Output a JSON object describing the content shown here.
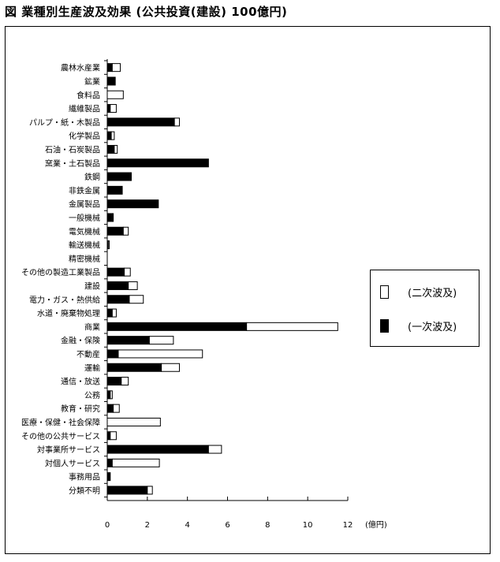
{
  "title": "図 業種別生産波及効果 (公共投資(建設) 100億円)",
  "chart_data": {
    "type": "bar",
    "orientation": "horizontal",
    "stacked": true,
    "categories": [
      "農林水産業",
      "鉱業",
      "食料品",
      "繊維製品",
      "パルプ・紙・木製品",
      "化学製品",
      "石油・石炭製品",
      "窯業・土石製品",
      "鉄鋼",
      "非鉄金属",
      "金属製品",
      "一般機械",
      "電気機械",
      "輸送機械",
      "精密機械",
      "その他の製造工業製品",
      "建設",
      "電力・ガス・熱供給",
      "水道・廃棄物処理",
      "商業",
      "金融・保険",
      "不動産",
      "運輸",
      "通信・放送",
      "公務",
      "教育・研究",
      "医療・保健・社会保障",
      "その他の公共サービス",
      "対事業所サービス",
      "対個人サービス",
      "事務用品",
      "分類不明"
    ],
    "series": [
      {
        "name": "一次波及",
        "color": "#000000",
        "values": [
          0.25,
          0.4,
          0,
          0.15,
          3.35,
          0.2,
          0.35,
          5.05,
          1.2,
          0.75,
          2.55,
          0.3,
          0.8,
          0.05,
          0,
          0.85,
          1.05,
          1.1,
          0.25,
          6.95,
          2.1,
          0.55,
          2.7,
          0.7,
          0.15,
          0.3,
          0,
          0.15,
          5.05,
          0.25,
          0.15,
          2.0
        ]
      },
      {
        "name": "二次波及",
        "color": "#ffffff",
        "values": [
          0.4,
          0,
          0.8,
          0.3,
          0.25,
          0.15,
          0.15,
          0,
          0,
          0,
          0,
          0,
          0.25,
          0.05,
          0,
          0.3,
          0.45,
          0.7,
          0.2,
          4.55,
          1.2,
          4.2,
          0.9,
          0.35,
          0.1,
          0.3,
          2.65,
          0.3,
          0.65,
          2.35,
          0,
          0.25
        ]
      }
    ],
    "xlim": [
      0,
      12
    ],
    "xticks": [
      0,
      2,
      4,
      6,
      8,
      10,
      12
    ],
    "xunit": "(億円)",
    "grid": false,
    "legend_position": "right",
    "legend_order": [
      "二次波及",
      "一次波及"
    ]
  },
  "legend": [
    {
      "label": "(二次波及)",
      "color": "#ffffff"
    },
    {
      "label": "(一次波及)",
      "color": "#000000"
    }
  ]
}
